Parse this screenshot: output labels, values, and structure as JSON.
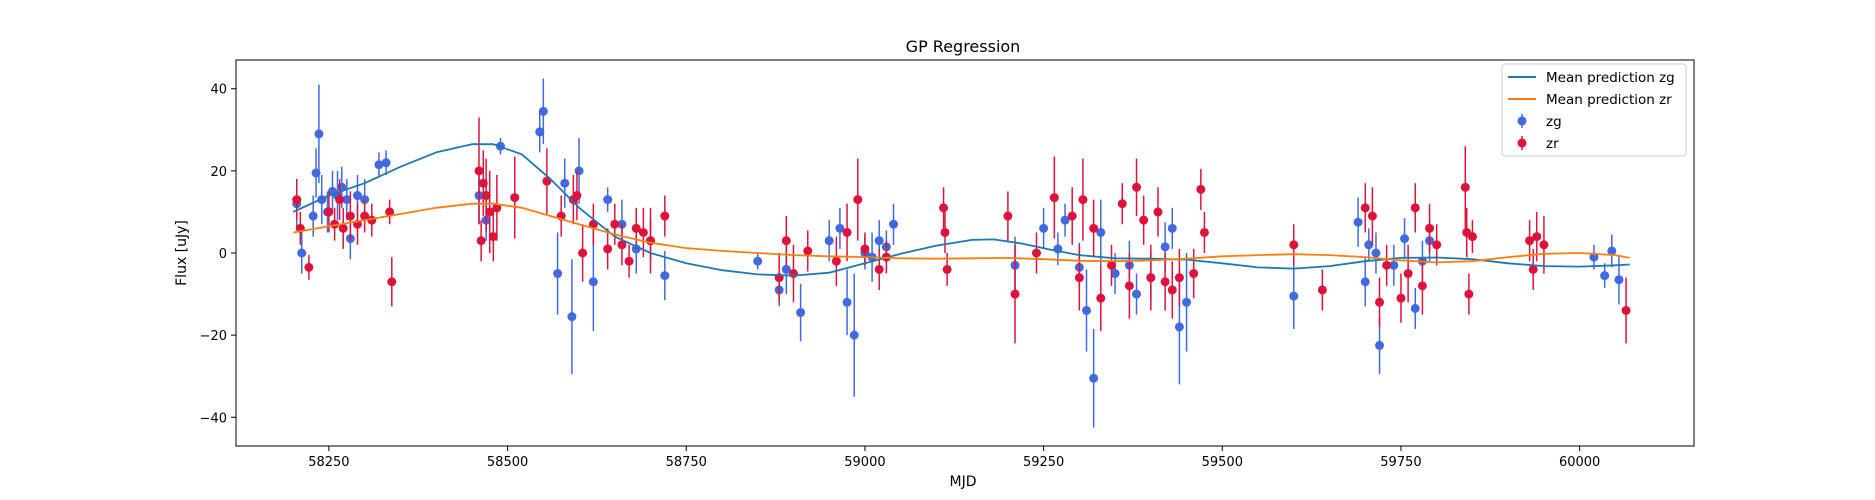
{
  "chart_data": {
    "type": "scatter",
    "title": "GP Regression",
    "xlabel": "MJD",
    "ylabel": "Flux [uJy]",
    "xlim": [
      58120,
      60160
    ],
    "ylim": [
      -47,
      47
    ],
    "xticks": [
      58250,
      58500,
      58750,
      59000,
      59250,
      59500,
      59750,
      60000
    ],
    "yticks": [
      -40,
      -20,
      0,
      20,
      40
    ],
    "grid": false,
    "legend_position": "top-right",
    "legend": [
      "Mean prediction zg",
      "Mean prediction zr",
      "zg",
      "zr"
    ],
    "colors": {
      "zg_points": "#4169e1",
      "zr_points": "#dc143c",
      "zg_line": "#1f77b4",
      "zr_line": "#ff7f0e"
    },
    "series": [
      {
        "name": "Mean prediction zg",
        "kind": "line",
        "x": [
          58200,
          58250,
          58300,
          58350,
          58400,
          58450,
          58480,
          58520,
          58560,
          58600,
          58650,
          58700,
          58750,
          58800,
          58850,
          58900,
          58950,
          59000,
          59050,
          59100,
          59150,
          59180,
          59220,
          59260,
          59300,
          59350,
          59400,
          59450,
          59500,
          59550,
          59600,
          59650,
          59700,
          59750,
          59800,
          59850,
          59900,
          59950,
          60000,
          60050,
          60070
        ],
        "y": [
          10,
          14,
          17,
          21,
          24.5,
          26.5,
          26.5,
          24,
          18,
          11,
          4,
          0,
          -2.5,
          -4.2,
          -5.2,
          -5.5,
          -4.8,
          -2.5,
          -0.2,
          1.8,
          3.2,
          3.3,
          2.3,
          0.8,
          -0.5,
          -1.3,
          -1.4,
          -1.6,
          -2.5,
          -3.5,
          -3.8,
          -3.2,
          -2.0,
          -1.2,
          -1.1,
          -1.5,
          -2.5,
          -3.2,
          -3.3,
          -3.0,
          -2.8
        ]
      },
      {
        "name": "Mean prediction zr",
        "kind": "line",
        "x": [
          58200,
          58250,
          58300,
          58350,
          58400,
          58450,
          58480,
          58520,
          58560,
          58600,
          58650,
          58700,
          58750,
          58800,
          58850,
          58900,
          58950,
          59000,
          59050,
          59100,
          59150,
          59200,
          59250,
          59300,
          59350,
          59400,
          59450,
          59500,
          59550,
          59600,
          59650,
          59700,
          59750,
          59800,
          59850,
          59900,
          59950,
          60000,
          60050,
          60070
        ],
        "y": [
          5,
          6.5,
          8,
          9.5,
          11,
          12,
          12,
          11,
          9,
          7,
          4.5,
          2.5,
          1.2,
          0.5,
          0,
          -0.5,
          -0.8,
          -1,
          -1.3,
          -1.4,
          -1.3,
          -1.2,
          -1.5,
          -1.9,
          -2.0,
          -1.8,
          -1.4,
          -0.8,
          -0.5,
          -0.3,
          -0.5,
          -1.0,
          -1.8,
          -2.3,
          -2.0,
          -1.0,
          -0.2,
          0,
          -0.5,
          -1.2
        ]
      },
      {
        "name": "zg",
        "kind": "errorbar",
        "x": [
          58205,
          58212,
          58228,
          58232,
          58236,
          58240,
          58248,
          58255,
          58262,
          58268,
          58275,
          58280,
          58290,
          58300,
          58320,
          58330,
          58460,
          58470,
          58490,
          58545,
          58550,
          58570,
          58580,
          58590,
          58600,
          58620,
          58640,
          58660,
          58680,
          58700,
          58720,
          58850,
          58880,
          58890,
          58910,
          58950,
          58965,
          58975,
          58985,
          59000,
          59010,
          59020,
          59030,
          59040,
          59210,
          59250,
          59270,
          59280,
          59300,
          59310,
          59320,
          59330,
          59350,
          59370,
          59380,
          59400,
          59420,
          59430,
          59440,
          59450,
          59600,
          59690,
          59700,
          59705,
          59715,
          59720,
          59740,
          59755,
          59770,
          59780,
          59790,
          60020,
          60035,
          60045,
          60055
        ],
        "y": [
          12,
          0,
          9,
          19.5,
          29,
          13,
          10,
          15,
          14,
          16,
          13,
          3.5,
          14,
          13,
          21.5,
          22,
          14,
          8,
          26,
          29.5,
          34.5,
          -5,
          17,
          -15.5,
          20,
          -7,
          13,
          7,
          1,
          3,
          -5.5,
          -2,
          -9,
          -4,
          -14.5,
          3,
          6,
          -12,
          -20,
          0,
          -1,
          3,
          1.5,
          7,
          -3,
          6,
          1,
          8,
          -3.5,
          -14,
          -30.5,
          5,
          -5,
          -3,
          -10,
          -6,
          1.5,
          6,
          -18,
          -12,
          -10.5,
          7.5,
          -7,
          2,
          0,
          -22.5,
          -3,
          3.5,
          -13.5,
          -2,
          3,
          -1,
          -5.5,
          0.5,
          -6.5
        ],
        "err": [
          6,
          5,
          5,
          6,
          12,
          6,
          5,
          5,
          6,
          5,
          5,
          5,
          5,
          5,
          3,
          3,
          7,
          5,
          2,
          5,
          8,
          10,
          6,
          14,
          8,
          12,
          3,
          6,
          6,
          5,
          6,
          2,
          4,
          6,
          7,
          5,
          5,
          8,
          15,
          4,
          6,
          5,
          4,
          5,
          7,
          5,
          4,
          4,
          6,
          10,
          12,
          8,
          5,
          6,
          5,
          6,
          6,
          5,
          14,
          12,
          8,
          6,
          6,
          4,
          5,
          7,
          5,
          5,
          5,
          5,
          5,
          3,
          3,
          4,
          6
        ],
        "color": "#4169e1"
      },
      {
        "name": "zr",
        "kind": "errorbar",
        "x": [
          58205,
          58210,
          58222,
          58250,
          58258,
          58265,
          58270,
          58280,
          58290,
          58300,
          58310,
          58335,
          58338,
          58460,
          58463,
          58466,
          58470,
          58475,
          58480,
          58485,
          58510,
          58555,
          58575,
          58592,
          58597,
          58605,
          58620,
          58640,
          58650,
          58660,
          58670,
          58680,
          58690,
          58700,
          58720,
          58880,
          58890,
          58900,
          58920,
          58960,
          58975,
          58990,
          59000,
          59020,
          59030,
          59110,
          59112,
          59115,
          59200,
          59210,
          59240,
          59265,
          59290,
          59300,
          59305,
          59320,
          59330,
          59345,
          59360,
          59370,
          59380,
          59390,
          59400,
          59410,
          59420,
          59430,
          59440,
          59460,
          59470,
          59475,
          59600,
          59640,
          59700,
          59710,
          59720,
          59730,
          59750,
          59760,
          59770,
          59780,
          59790,
          59800,
          59840,
          59842,
          59845,
          59850,
          59930,
          59935,
          59940,
          59950,
          60065
        ],
        "y": [
          13,
          6,
          -3.5,
          10,
          7,
          13,
          6,
          9,
          7,
          9,
          8,
          10,
          -7,
          20,
          3,
          17,
          14,
          10,
          4,
          11,
          13.5,
          17.5,
          9,
          13,
          14,
          0,
          7,
          1,
          7,
          2,
          -2,
          6,
          5,
          3,
          9,
          -6,
          3,
          -5,
          0.5,
          -2,
          5,
          13,
          1,
          -4,
          -1,
          11,
          5,
          -4,
          9,
          -10,
          0,
          13.5,
          9,
          -6,
          13,
          6,
          -11,
          -3,
          12,
          -8,
          16,
          8,
          -6,
          10,
          -7,
          -9,
          -6,
          -5,
          15.5,
          5,
          2,
          -9,
          11,
          9,
          -12,
          -3,
          -11,
          -5,
          11,
          -8,
          6,
          2,
          16,
          5,
          -10,
          4,
          3,
          -4,
          4,
          2,
          -14
        ],
        "err": [
          5,
          4,
          3,
          5,
          4,
          5,
          5,
          6,
          5,
          4,
          4,
          3,
          6,
          13,
          5,
          8,
          9,
          10,
          6,
          8,
          10,
          8,
          5,
          6,
          6,
          7,
          5,
          5,
          5,
          5,
          4,
          5,
          6,
          8,
          5,
          6,
          6,
          7,
          5,
          6,
          7,
          10,
          4,
          5,
          4,
          5,
          5,
          4,
          6,
          12,
          5,
          10,
          7,
          8,
          10,
          7,
          8,
          5,
          5,
          8,
          7,
          6,
          8,
          6,
          7,
          7,
          7,
          6,
          5,
          5,
          5,
          5,
          6,
          7,
          6,
          5,
          6,
          7,
          6,
          7,
          6,
          5,
          10,
          6,
          5,
          4,
          5,
          5,
          6,
          7,
          8
        ],
        "color": "#dc143c"
      }
    ]
  }
}
